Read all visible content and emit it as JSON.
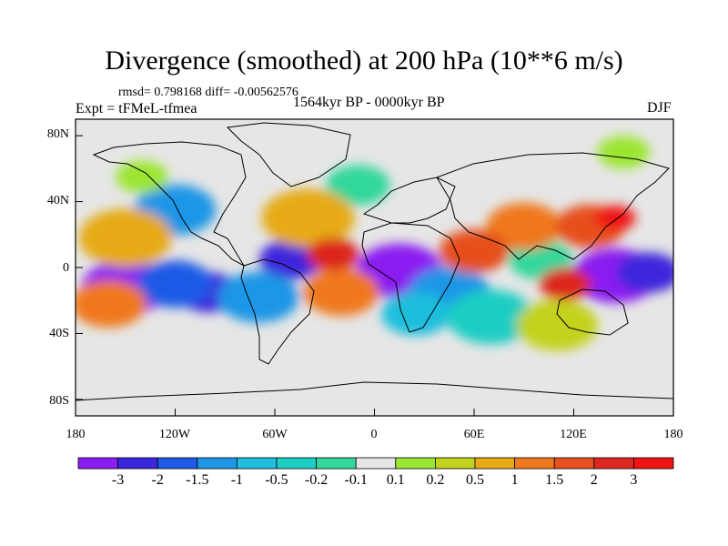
{
  "title": "Divergence (smoothed) at 200 hPa (10**6 m/s)",
  "stats": "rmsd= 0.798168 diff= -0.00562576",
  "experiment": "Expt = tFMeL-tfmea",
  "period": "1564kyr BP - 0000kyr BP",
  "season": "DJF",
  "lat_labels": [
    "80N",
    "40N",
    "0",
    "40S",
    "80S"
  ],
  "lon_labels": [
    "180",
    "120W",
    "60W",
    "0",
    "60E",
    "120E",
    "180"
  ],
  "colorbar": {
    "labels": [
      "-3",
      "-2",
      "-1.5",
      "-1",
      "-0.5",
      "-0.2",
      "-0.1",
      "0.1",
      "0.2",
      "0.5",
      "1",
      "1.5",
      "2",
      "3"
    ],
    "colors": [
      "#8A1EF0",
      "#3C28DC",
      "#1E5AE6",
      "#1E96E6",
      "#1EBEDC",
      "#1ECDC3",
      "#32D79B",
      "#E6E6E6",
      "#9BE632",
      "#C3D21E",
      "#E6AA14",
      "#F0781E",
      "#E6501E",
      "#DC281E",
      "#F01414"
    ]
  },
  "features": [
    {
      "color_index": 0,
      "lon": -150,
      "lat": -12
    },
    {
      "color_index": 0,
      "lon": 15,
      "lat": -2
    },
    {
      "color_index": 0,
      "lon": 145,
      "lat": -5
    },
    {
      "color_index": 1,
      "lon": -100,
      "lat": -15
    },
    {
      "color_index": 1,
      "lon": -50,
      "lat": 5
    },
    {
      "color_index": 1,
      "lon": 165,
      "lat": -3
    },
    {
      "color_index": 2,
      "lon": -120,
      "lat": -10
    },
    {
      "color_index": 3,
      "lon": -70,
      "lat": -18
    },
    {
      "color_index": 3,
      "lon": 45,
      "lat": -15
    },
    {
      "color_index": 3,
      "lon": -120,
      "lat": 35
    },
    {
      "color_index": 4,
      "lon": 25,
      "lat": -28
    },
    {
      "color_index": 5,
      "lon": 70,
      "lat": -30
    },
    {
      "color_index": 6,
      "lon": -10,
      "lat": 50
    },
    {
      "color_index": 6,
      "lon": 100,
      "lat": 5
    },
    {
      "color_index": 8,
      "lon": -140,
      "lat": 55
    },
    {
      "color_index": 8,
      "lon": 150,
      "lat": 70
    },
    {
      "color_index": 9,
      "lon": 110,
      "lat": -35
    },
    {
      "color_index": 10,
      "lon": -40,
      "lat": 30
    },
    {
      "color_index": 10,
      "lon": -150,
      "lat": 18
    },
    {
      "color_index": 11,
      "lon": 90,
      "lat": 25
    },
    {
      "color_index": 11,
      "lon": -160,
      "lat": -22
    },
    {
      "color_index": 11,
      "lon": -20,
      "lat": -15
    },
    {
      "color_index": 12,
      "lon": 60,
      "lat": 10
    },
    {
      "color_index": 12,
      "lon": 130,
      "lat": 25
    },
    {
      "color_index": 13,
      "lon": -25,
      "lat": 8
    },
    {
      "color_index": 13,
      "lon": 115,
      "lat": -10
    },
    {
      "color_index": 14,
      "lon": 145,
      "lat": 30
    }
  ]
}
